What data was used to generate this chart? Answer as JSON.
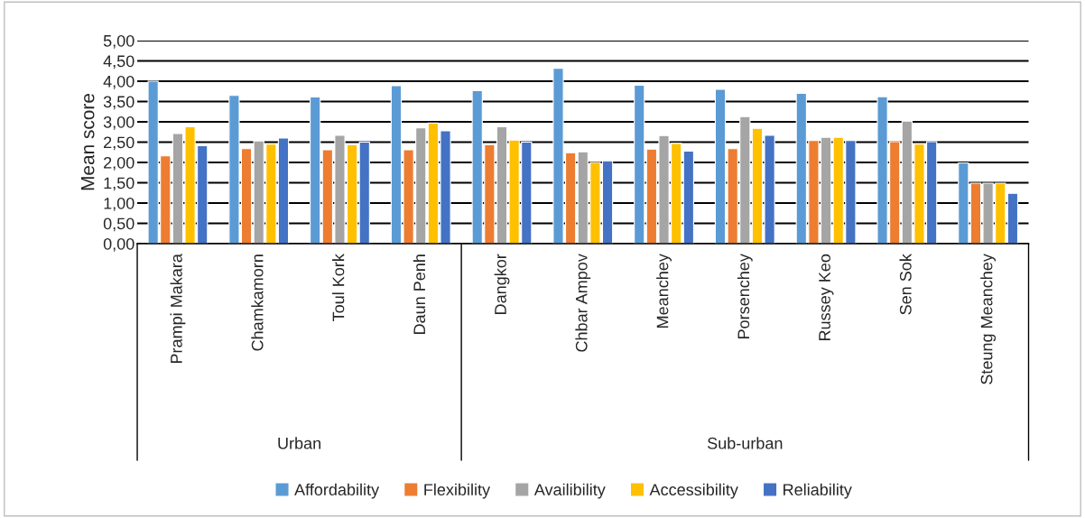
{
  "chart_data": {
    "type": "bar",
    "ylabel": "Mean score",
    "categories": [
      "Prampi Makara",
      "Chamkamorn",
      "Toul Kork",
      "Daun Penh",
      "Dangkor",
      "Chbar Ampov",
      "Meanchey",
      "Porsenchey",
      "Russey Keo",
      "Sen Sok",
      "Steung Meanchey"
    ],
    "series": [
      {
        "name": "Affordability",
        "color": "#5b9bd5",
        "values": [
          4.0,
          3.65,
          3.61,
          3.89,
          3.77,
          4.32,
          3.9,
          3.8,
          3.7,
          3.62,
          1.99
        ]
      },
      {
        "name": "Flexibility",
        "color": "#ed7d31",
        "values": [
          2.16,
          2.34,
          2.31,
          2.31,
          2.44,
          2.24,
          2.33,
          2.34,
          2.54,
          2.51,
          1.49
        ]
      },
      {
        "name": "Availibility",
        "color": "#a5a5a5",
        "values": [
          2.71,
          2.53,
          2.67,
          2.85,
          2.88,
          2.26,
          2.66,
          3.13,
          2.62,
          3.02,
          1.49
        ]
      },
      {
        "name": "Accessibility",
        "color": "#ffc000",
        "values": [
          2.88,
          2.45,
          2.44,
          2.97,
          2.55,
          2.0,
          2.47,
          2.84,
          2.62,
          2.45,
          1.49
        ]
      },
      {
        "name": "Reliability",
        "color": "#4472c4",
        "values": [
          2.41,
          2.6,
          2.5,
          2.78,
          2.5,
          2.04,
          2.28,
          2.67,
          2.54,
          2.51,
          1.24
        ]
      }
    ],
    "ylim": [
      0,
      5
    ],
    "yticks": [
      {
        "value": 0,
        "label": "0,00"
      },
      {
        "value": 0.5,
        "label": "0,50"
      },
      {
        "value": 1,
        "label": "1,00"
      },
      {
        "value": 1.5,
        "label": "1,50"
      },
      {
        "value": 2,
        "label": "2,00"
      },
      {
        "value": 2.5,
        "label": "2,50"
      },
      {
        "value": 3,
        "label": "3,00"
      },
      {
        "value": 3.5,
        "label": "3,50"
      },
      {
        "value": 4,
        "label": "4,00"
      },
      {
        "value": 4.5,
        "label": "4,50"
      },
      {
        "value": 5,
        "label": "5,00"
      }
    ],
    "annotations": [
      "Urban",
      "Sub-urban"
    ],
    "grid": "y",
    "legend": "bottom"
  }
}
